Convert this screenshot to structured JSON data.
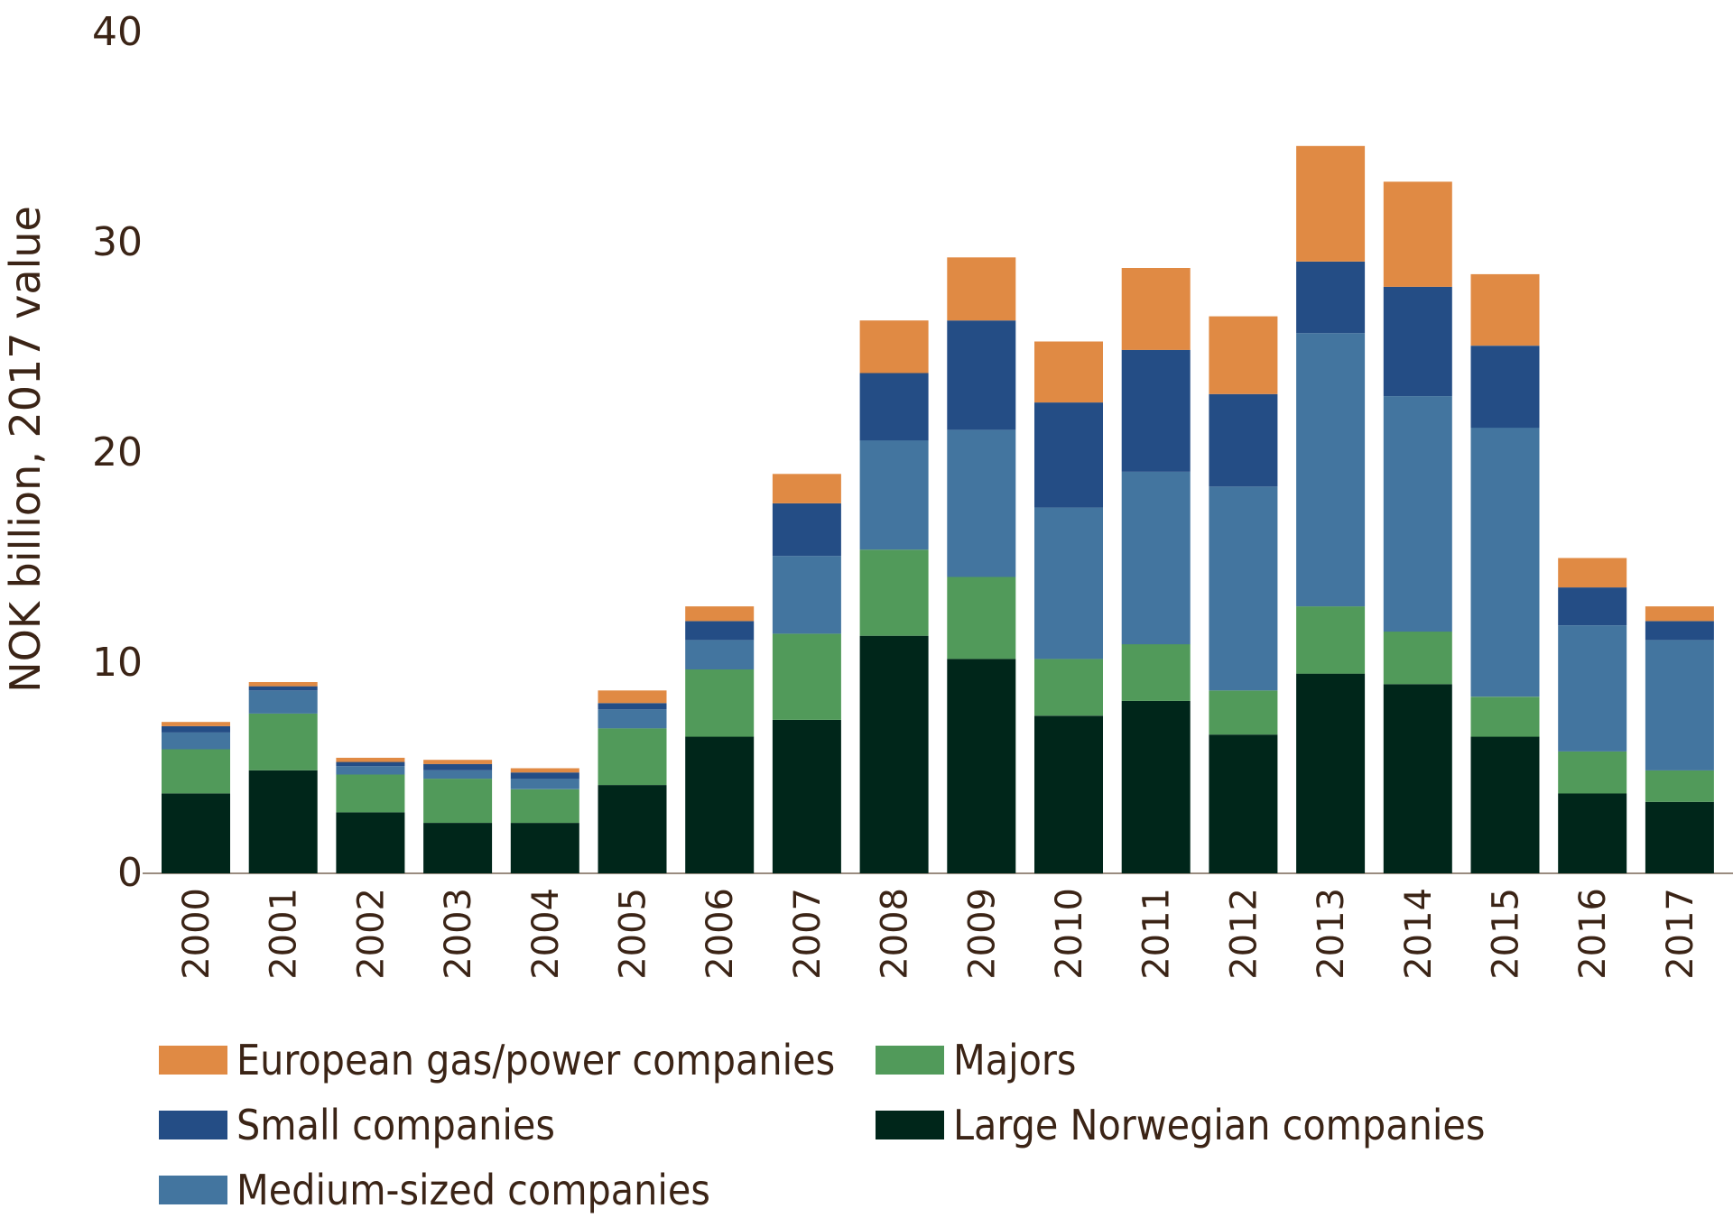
{
  "chart_data": {
    "type": "bar",
    "stacked": true,
    "title": "",
    "xlabel": "",
    "ylabel": "NOK billion, 2017 value",
    "ylim": [
      0,
      40
    ],
    "yticks": [
      "0",
      "10",
      "20",
      "30",
      "40"
    ],
    "categories": [
      "2000",
      "2001",
      "2002",
      "2003",
      "2004",
      "2005",
      "2006",
      "2007",
      "2008",
      "2009",
      "2010",
      "2011",
      "2012",
      "2013",
      "2014",
      "2015",
      "2016",
      "2017"
    ],
    "series": [
      {
        "key": "large",
        "name": "Large Norwegian companies",
        "color": "#00261a",
        "values": [
          3.8,
          4.9,
          2.9,
          2.4,
          2.4,
          4.2,
          6.5,
          7.3,
          11.3,
          10.2,
          7.5,
          8.2,
          6.6,
          9.5,
          9.0,
          6.5,
          3.8,
          3.4
        ]
      },
      {
        "key": "majors",
        "name": "Majors",
        "color": "#519a5a",
        "values": [
          2.1,
          2.7,
          1.8,
          2.1,
          1.6,
          2.7,
          3.2,
          4.1,
          4.1,
          3.9,
          2.7,
          2.7,
          2.1,
          3.2,
          2.5,
          1.9,
          2.0,
          1.5
        ]
      },
      {
        "key": "medium",
        "name": "Medium-sized companies",
        "color": "#43759f",
        "values": [
          0.8,
          1.1,
          0.4,
          0.4,
          0.5,
          0.9,
          1.4,
          3.7,
          5.2,
          7.0,
          7.2,
          8.2,
          9.7,
          13.0,
          11.2,
          12.8,
          6.0,
          6.2
        ]
      },
      {
        "key": "small",
        "name": "Small companies",
        "color": "#244d85",
        "values": [
          0.3,
          0.2,
          0.2,
          0.3,
          0.3,
          0.3,
          0.9,
          2.5,
          3.2,
          5.2,
          5.0,
          5.8,
          4.4,
          3.4,
          5.2,
          3.9,
          1.8,
          0.9
        ]
      },
      {
        "key": "european",
        "name": "European gas/power companies",
        "color": "#e08a44",
        "values": [
          0.2,
          0.2,
          0.2,
          0.2,
          0.2,
          0.6,
          0.7,
          1.4,
          2.5,
          3.0,
          2.9,
          3.9,
          3.7,
          5.5,
          5.0,
          3.4,
          1.4,
          0.7
        ]
      }
    ],
    "legend": {
      "position": "bottom",
      "order": [
        "european",
        "majors",
        "small",
        "large",
        "medium"
      ]
    }
  }
}
